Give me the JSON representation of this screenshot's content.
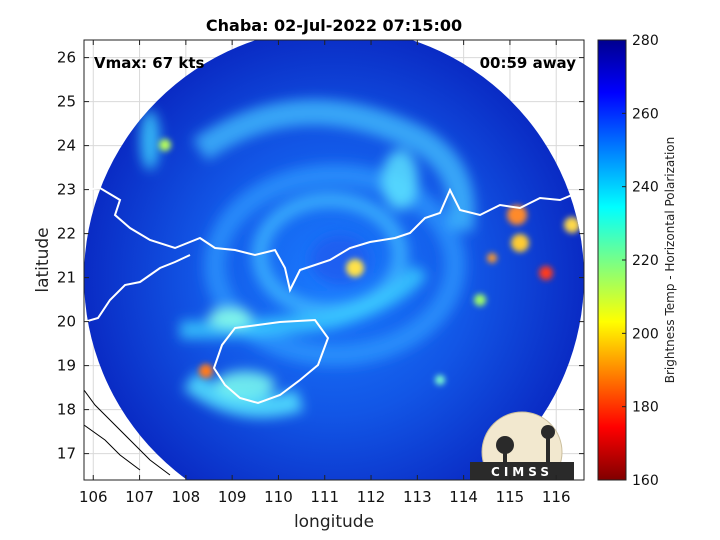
{
  "chart_data": {
    "type": "heatmap",
    "title": "Chaba: 02-Jul-2022 07:15:00",
    "xlabel": "longitude",
    "ylabel": "latitude",
    "xlim": [
      105.8,
      116.6
    ],
    "ylim": [
      16.4,
      26.4
    ],
    "xticks": [
      106,
      107,
      108,
      109,
      110,
      111,
      112,
      113,
      114,
      115,
      116
    ],
    "yticks": [
      17,
      18,
      19,
      20,
      21,
      22,
      23,
      24,
      25,
      26
    ],
    "annotations": {
      "vmax": "Vmax: 67 kts",
      "away": "00:59 away"
    },
    "storm_center": {
      "lon": 111.2,
      "lat": 21.2
    },
    "swath": {
      "center_lon": 111.2,
      "center_lat": 21.0,
      "radius_deg": 5.4
    },
    "colorbar": {
      "label": "Brightness Temp - Horizontal Polarization",
      "range": [
        160,
        280
      ],
      "ticks": [
        160,
        180,
        200,
        220,
        240,
        260,
        280
      ]
    },
    "logo_text": "CIMSS",
    "grid": true
  }
}
